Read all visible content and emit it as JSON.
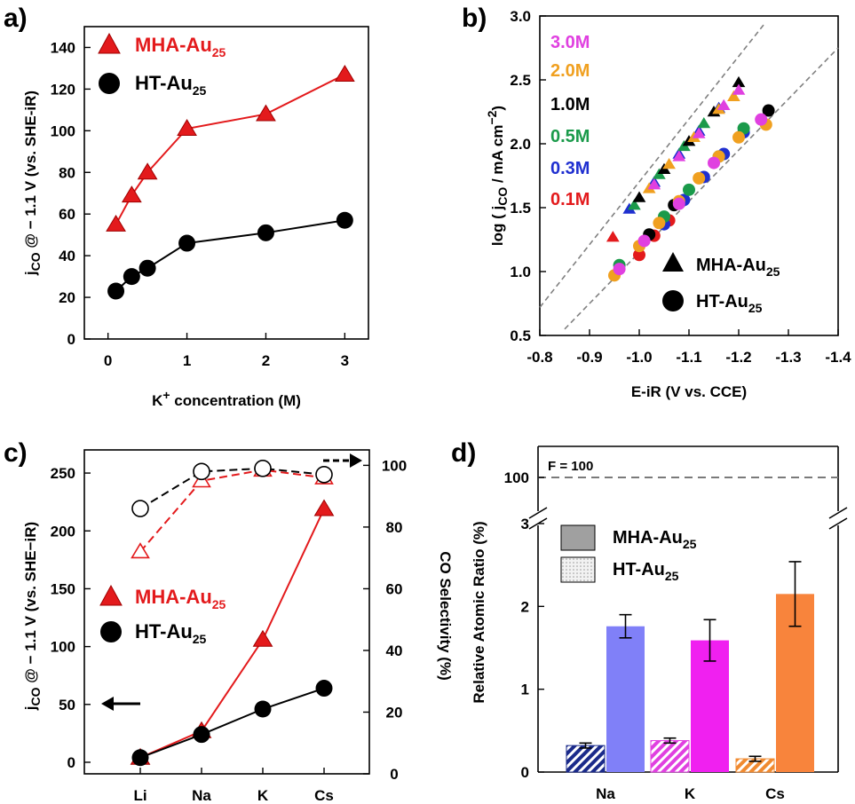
{
  "panels": {
    "a": {
      "letter": "a)",
      "ylabel_main": "j",
      "ylabel_sub": "CO",
      "ylabel_rest": " @ − 1.1 V (vs. SHE-iR)",
      "xlabel_pre": "K",
      "xlabel_sup": "+",
      "xlabel_post": " concentration (M)",
      "legend": [
        {
          "main": "MHA-Au",
          "sub": "25",
          "color": "#e31a1c",
          "marker": "triangle"
        },
        {
          "main": "HT-Au",
          "sub": "25",
          "color": "#000000",
          "marker": "circle"
        }
      ]
    },
    "b": {
      "letter": "b)",
      "ylabel_main": "log ( j",
      "ylabel_sub": "CO",
      "ylabel_rest": " / mA cm",
      "ylabel_sup": "−2",
      "ylabel_end": ")",
      "xlabel": "E-iR (V vs. CCE)",
      "conc_labels": [
        {
          "text": "3.0M",
          "color": "#e040e0"
        },
        {
          "text": "2.0M",
          "color": "#f0a020"
        },
        {
          "text": "1.0M",
          "color": "#000000"
        },
        {
          "text": "0.5M",
          "color": "#1a9a4a"
        },
        {
          "text": "0.3M",
          "color": "#1f2fd0"
        },
        {
          "text": "0.1M",
          "color": "#e31a1c"
        }
      ],
      "legend": [
        {
          "main": "MHA-Au",
          "sub": "25",
          "marker": "triangle"
        },
        {
          "main": "HT-Au",
          "sub": "25",
          "marker": "circle"
        }
      ]
    },
    "c": {
      "letter": "c)",
      "ylabel_main": "j",
      "ylabel_sub": "CO",
      "ylabel_rest": " @ − 1.1 V (vs. SHE−iR)",
      "y2label": "CO Selectivity (%)",
      "legend": [
        {
          "main": "MHA-Au",
          "sub": "25",
          "color": "#e31a1c",
          "marker": "triangle"
        },
        {
          "main": "HT-Au",
          "sub": "25",
          "color": "#000000",
          "marker": "circle"
        }
      ]
    },
    "d": {
      "letter": "d)",
      "ylabel": "Relative Atomic Ratio (%)",
      "f_label": "F = 100",
      "legend": [
        {
          "main": "MHA-Au",
          "sub": "25",
          "fill": "#a0a0a0",
          "pattern": "solid"
        },
        {
          "main": "HT-Au",
          "sub": "25",
          "fill": "#e0e0e0",
          "pattern": "dots"
        }
      ]
    }
  },
  "chart_data": [
    {
      "id": "a",
      "type": "line",
      "xlabel": "K+ concentration (M)",
      "ylabel": "jCO @ − 1.1 V (vs. SHE-iR)",
      "xlim": [
        -0.3,
        3.3
      ],
      "ylim": [
        0,
        150
      ],
      "xticks": [
        0,
        1,
        2,
        3
      ],
      "yticks": [
        0,
        20,
        40,
        60,
        80,
        100,
        120,
        140
      ],
      "series": [
        {
          "name": "MHA-Au25",
          "color": "#e31a1c",
          "marker": "triangle",
          "x": [
            0.1,
            0.3,
            0.5,
            1.0,
            2.0,
            3.0
          ],
          "y": [
            55,
            69,
            80,
            101,
            108,
            127
          ]
        },
        {
          "name": "HT-Au25",
          "color": "#000000",
          "marker": "circle",
          "x": [
            0.1,
            0.3,
            0.5,
            1.0,
            2.0,
            3.0
          ],
          "y": [
            23,
            30,
            34,
            46,
            51,
            57
          ]
        }
      ]
    },
    {
      "id": "b",
      "type": "scatter",
      "xlabel": "E-iR (V vs. CCE)",
      "ylabel": "log ( jCO / mA cm−2)",
      "xlim": [
        -0.8,
        -1.4
      ],
      "ylim": [
        0.5,
        3.0
      ],
      "xticks": [
        -0.8,
        -0.9,
        -1.0,
        -1.1,
        -1.2,
        -1.3,
        -1.4
      ],
      "yticks": [
        0.5,
        1.0,
        1.5,
        2.0,
        2.5,
        3.0
      ],
      "guide_lines": [
        {
          "x": [
            -0.8,
            -1.25
          ],
          "y": [
            0.72,
            2.93
          ]
        },
        {
          "x": [
            -0.85,
            -1.4
          ],
          "y": [
            0.55,
            2.75
          ]
        }
      ],
      "series": [
        {
          "name": "0.1M",
          "color": "#e31a1c",
          "marker": "triangle",
          "x": [
            -0.947
          ],
          "y": [
            1.27
          ]
        },
        {
          "name": "0.3M",
          "color": "#1f2fd0",
          "marker": "triangle",
          "x": [
            -0.98,
            -1.03,
            -1.08,
            -1.12,
            -1.16
          ],
          "y": [
            1.49,
            1.7,
            1.92,
            2.1,
            2.28
          ]
        },
        {
          "name": "0.5M",
          "color": "#1a9a4a",
          "marker": "triangle",
          "x": [
            -0.99,
            -1.04,
            -1.09,
            -1.13
          ],
          "y": [
            1.52,
            1.76,
            1.98,
            2.16
          ]
        },
        {
          "name": "1.0M",
          "color": "#000000",
          "marker": "triangle",
          "x": [
            -1.0,
            -1.05,
            -1.1,
            -1.15,
            -1.2
          ],
          "y": [
            1.58,
            1.8,
            2.02,
            2.25,
            2.48
          ]
        },
        {
          "name": "2.0M",
          "color": "#f0a020",
          "marker": "triangle",
          "x": [
            -1.02,
            -1.06,
            -1.11,
            -1.16,
            -1.19
          ],
          "y": [
            1.65,
            1.84,
            2.05,
            2.27,
            2.37
          ]
        },
        {
          "name": "3.0M",
          "color": "#e040e0",
          "marker": "triangle",
          "x": [
            -1.03,
            -1.08,
            -1.12,
            -1.17,
            -1.2
          ],
          "y": [
            1.68,
            1.9,
            2.08,
            2.3,
            2.42
          ]
        },
        {
          "name": "0.1M",
          "color": "#e31a1c",
          "marker": "circle",
          "x": [
            -1.0,
            -1.03,
            -1.06
          ],
          "y": [
            1.13,
            1.28,
            1.4
          ]
        },
        {
          "name": "0.3M",
          "color": "#1f2fd0",
          "marker": "circle",
          "x": [
            -1.05,
            -1.09,
            -1.13,
            -1.17,
            -1.21
          ],
          "y": [
            1.37,
            1.56,
            1.74,
            1.92,
            2.09
          ]
        },
        {
          "name": "0.5M",
          "color": "#1a9a4a",
          "marker": "circle",
          "x": [
            -0.96,
            -1.05,
            -1.1,
            -1.16,
            -1.21
          ],
          "y": [
            1.05,
            1.43,
            1.64,
            1.9,
            2.12
          ]
        },
        {
          "name": "1.0M",
          "color": "#000000",
          "marker": "circle",
          "x": [
            -1.02,
            -1.07,
            -1.26
          ],
          "y": [
            1.29,
            1.52,
            2.26
          ]
        },
        {
          "name": "2.0M",
          "color": "#f0a020",
          "marker": "circle",
          "x": [
            -0.95,
            -1.0,
            -1.04,
            -1.08,
            -1.12,
            -1.16,
            -1.2,
            -1.255
          ],
          "y": [
            0.97,
            1.2,
            1.38,
            1.55,
            1.73,
            1.9,
            2.05,
            2.15
          ]
        },
        {
          "name": "3.0M",
          "color": "#e040e0",
          "marker": "circle",
          "x": [
            -0.96,
            -1.01,
            -1.08,
            -1.15,
            -1.245
          ],
          "y": [
            1.02,
            1.24,
            1.53,
            1.85,
            2.19
          ]
        }
      ]
    },
    {
      "id": "c",
      "type": "line",
      "categories": [
        "Li",
        "Na",
        "K",
        "Cs"
      ],
      "ylabel": "jCO @ − 1.1 V (vs. SHE−iR)",
      "y2label": "CO Selectivity (%)",
      "ylim": [
        -10,
        270
      ],
      "y2lim": [
        0,
        105
      ],
      "yticks": [
        0,
        50,
        100,
        150,
        200,
        250
      ],
      "y2ticks": [
        0,
        20,
        40,
        60,
        80,
        100
      ],
      "series": [
        {
          "name": "MHA-Au25",
          "axis": "left",
          "color": "#e31a1c",
          "marker": "triangle",
          "values": [
            4,
            27,
            106,
            219
          ]
        },
        {
          "name": "HT-Au25",
          "axis": "left",
          "color": "#000000",
          "marker": "circle",
          "values": [
            4,
            24,
            46,
            64
          ]
        },
        {
          "name": "MHA-Au25 selectivity",
          "axis": "right",
          "color": "#e31a1c",
          "marker": "triangle-open",
          "dashed": true,
          "values": [
            72,
            95,
            98.5,
            96
          ]
        },
        {
          "name": "HT-Au25 selectivity",
          "axis": "right",
          "color": "#000000",
          "marker": "circle-open",
          "dashed": true,
          "values": [
            86,
            98,
            99,
            97
          ]
        }
      ]
    },
    {
      "id": "d",
      "type": "bar",
      "categories": [
        "Na",
        "K",
        "Cs"
      ],
      "ylabel": "Relative Atomic Ratio (%)",
      "ylim": [
        0,
        3
      ],
      "yticks": [
        0,
        1,
        2,
        3
      ],
      "upper_tick": 100,
      "reference_line": 100,
      "series": [
        {
          "name": "MHA-Au25",
          "pattern": "hatch",
          "values": [
            0.32,
            0.38,
            0.16
          ],
          "errors": [
            0.03,
            0.03,
            0.03
          ],
          "colors": [
            "#1a2a8a",
            "#e040e0",
            "#f08a30"
          ]
        },
        {
          "name": "HT-Au25",
          "pattern": "solid",
          "values": [
            1.76,
            1.59,
            2.15
          ],
          "errors": [
            0.14,
            0.25,
            0.39
          ],
          "colors": [
            "#8080f8",
            "#f020f0",
            "#f8843c"
          ]
        }
      ]
    }
  ]
}
